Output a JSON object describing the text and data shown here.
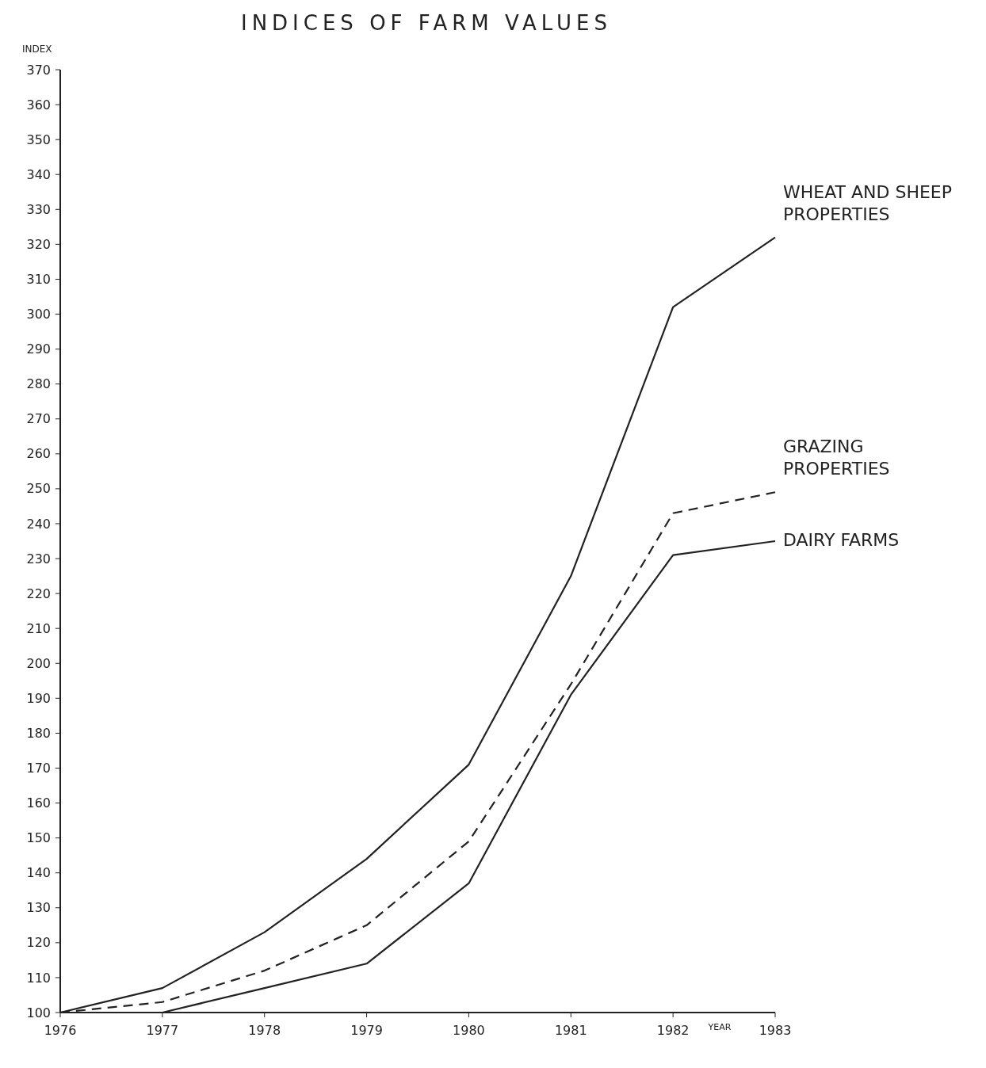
{
  "chart_data": {
    "type": "line",
    "title": "INDICES OF FARM VALUES",
    "xlabel": "YEAR",
    "ylabel": "INDEX",
    "x": [
      1976,
      1977,
      1978,
      1979,
      1980,
      1981,
      1982,
      1983
    ],
    "xlim": [
      1976,
      1983
    ],
    "xticks": [
      1976,
      1977,
      1978,
      1979,
      1980,
      1981,
      1982,
      1983
    ],
    "ylim": [
      100,
      370
    ],
    "yticks": [
      100,
      110,
      120,
      130,
      140,
      150,
      160,
      170,
      180,
      190,
      200,
      210,
      220,
      230,
      240,
      250,
      260,
      270,
      280,
      290,
      300,
      310,
      320,
      330,
      340,
      350,
      360,
      370
    ],
    "grid": false,
    "marker": "none",
    "series": [
      {
        "name": "WHEAT AND SHEEP PROPERTIES",
        "color": "#222222",
        "line_style": "solid",
        "values": [
          100,
          107,
          123,
          144,
          171,
          225,
          302,
          322
        ]
      },
      {
        "name": "GRAZING PROPERTIES",
        "color": "#222222",
        "line_style": "dashed",
        "values": [
          100,
          103,
          112,
          125,
          149,
          194,
          243,
          249
        ]
      },
      {
        "name": "DAIRY FARMS",
        "color": "#222222",
        "line_style": "solid",
        "values": [
          100,
          100,
          107,
          114,
          137,
          191,
          231,
          235
        ]
      }
    ]
  }
}
